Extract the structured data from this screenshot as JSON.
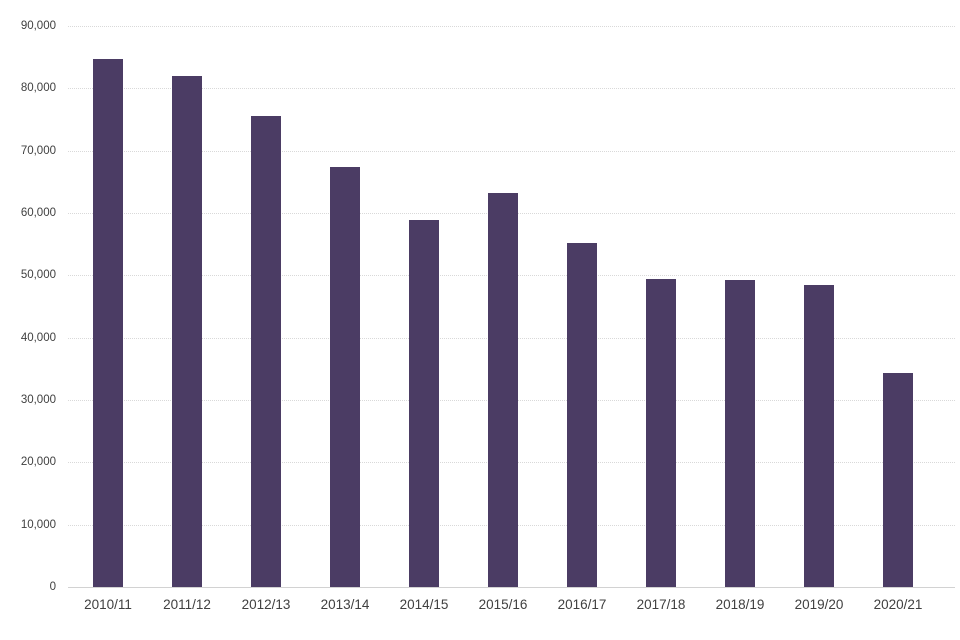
{
  "chart_data": {
    "type": "bar",
    "title": "",
    "xlabel": "",
    "ylabel": "",
    "categories": [
      "2010/11",
      "2011/12",
      "2012/13",
      "2013/14",
      "2014/15",
      "2015/16",
      "2016/17",
      "2017/18",
      "2018/19",
      "2019/20",
      "2020/21"
    ],
    "values": [
      84700,
      81900,
      75600,
      67300,
      58800,
      63200,
      55200,
      49400,
      49200,
      48400,
      34300
    ],
    "ylim": [
      0,
      90000
    ],
    "ytick_step": 10000,
    "ytick_labels": [
      "0",
      "10,000",
      "20,000",
      "30,000",
      "40,000",
      "50,000",
      "60,000",
      "70,000",
      "80,000",
      "90,000"
    ],
    "grid": "horizontal-dotted",
    "legend": "none",
    "bar_color": "#4b3c64",
    "gridline_color": "#d9d9d9",
    "axis_line_color": "#d2d2d2",
    "tick_text_color": "#404040"
  }
}
